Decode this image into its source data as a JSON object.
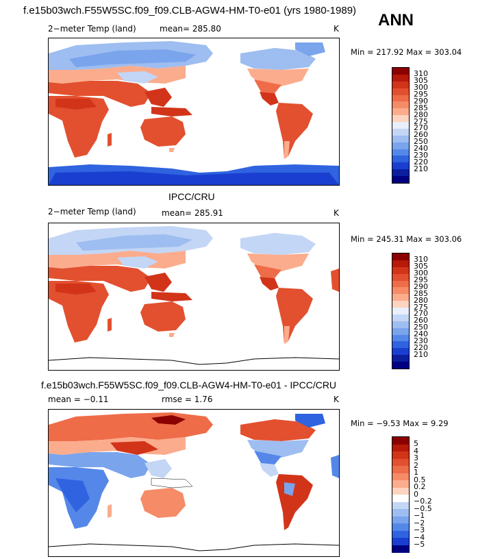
{
  "header": {
    "title": "f.e15b03wch.F55W5SC.f09_f09.CLB-AGW4-HM-T0-e01 (yrs 1980-1989)",
    "season": "ANN"
  },
  "panels": [
    {
      "id": "model",
      "section_title": "",
      "left_label": "2−meter Temp (land)",
      "center_label": "mean=  285.80",
      "unit": "K",
      "minmax": "Min = 217.92 Max = 303.04",
      "colorbar": {
        "labels": [
          "310",
          "305",
          "300",
          "295",
          "290",
          "285",
          "280",
          "275",
          "270",
          "260",
          "250",
          "240",
          "230",
          "220",
          "210"
        ],
        "colors": [
          "#8b0000",
          "#b51a0a",
          "#d2341a",
          "#e2502f",
          "#ee6c48",
          "#f58b67",
          "#fbac8d",
          "#fdd4bf",
          "#e9effb",
          "#c3d6f5",
          "#9ebdf0",
          "#7aa4ec",
          "#5487e8",
          "#2f63e0",
          "#1a3fd0",
          "#0b1f9e",
          "#000080"
        ]
      }
    },
    {
      "id": "obs",
      "section_title": "IPCC/CRU",
      "left_label": "2−meter Temp (land)",
      "center_label": "mean=  285.91",
      "unit": "K",
      "minmax": "Min = 245.31 Max = 303.06",
      "colorbar": {
        "labels": [
          "310",
          "305",
          "300",
          "295",
          "290",
          "285",
          "280",
          "275",
          "270",
          "260",
          "250",
          "240",
          "230",
          "220",
          "210"
        ],
        "colors": [
          "#8b0000",
          "#b51a0a",
          "#d2341a",
          "#e2502f",
          "#ee6c48",
          "#f58b67",
          "#fbac8d",
          "#fdd4bf",
          "#e9effb",
          "#c3d6f5",
          "#9ebdf0",
          "#7aa4ec",
          "#5487e8",
          "#2f63e0",
          "#1a3fd0",
          "#0b1f9e",
          "#000080"
        ]
      }
    },
    {
      "id": "diff",
      "section_title": "f.e15b03wch.F55W5SC.f09_f09.CLB-AGW4-HM-T0-e01 - IPCC/CRU",
      "left_label": "mean =   −0.11",
      "center_label": "rmse =    1.76",
      "unit": "K",
      "minmax": "Min =   −9.53 Max =    9.29",
      "colorbar": {
        "labels": [
          "5",
          "4",
          "3",
          "2",
          "1",
          "0.5",
          "0.2",
          "0",
          "−0.2",
          "−0.5",
          "−1",
          "−2",
          "−3",
          "−4",
          "−5"
        ],
        "colors": [
          "#8b0000",
          "#b51a0a",
          "#d2341a",
          "#e2502f",
          "#ee6c48",
          "#f58b67",
          "#fbac8d",
          "#fdd4bf",
          "#ffffff",
          "#c3d6f5",
          "#9ebdf0",
          "#7aa4ec",
          "#5487e8",
          "#2f63e0",
          "#1a3fd0",
          "#000080"
        ]
      }
    }
  ]
}
